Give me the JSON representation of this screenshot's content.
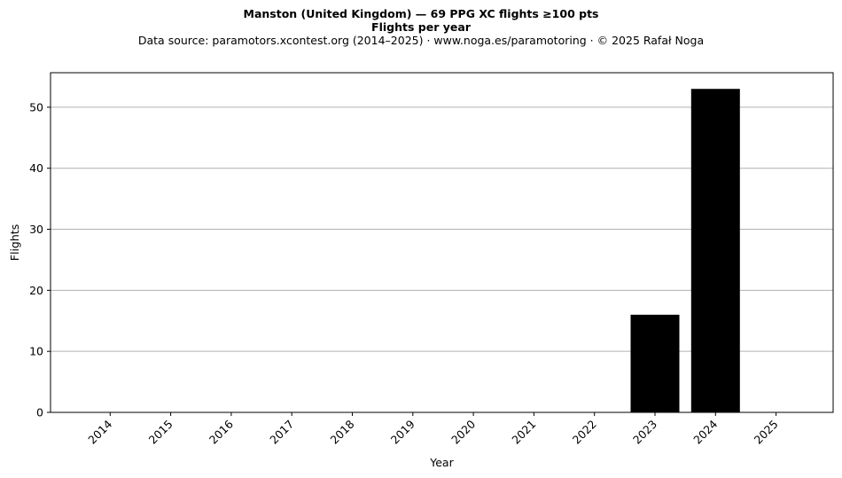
{
  "chart_data": {
    "type": "bar",
    "title": "Manston (United Kingdom)  —  69 PPG XC flights ≥100 pts",
    "subtitle": "Flights per year",
    "source_note": "Data source: paramotors.xcontest.org (2014–2025)  ·  www.noga.es/paramotoring  ·  © 2025 Rafał Noga",
    "xlabel": "Year",
    "ylabel": "Flights",
    "categories": [
      "2014",
      "2015",
      "2016",
      "2017",
      "2018",
      "2019",
      "2020",
      "2021",
      "2022",
      "2023",
      "2024",
      "2025"
    ],
    "values": [
      0,
      0,
      0,
      0,
      0,
      0,
      0,
      0,
      0,
      16,
      53,
      0
    ],
    "ylim": [
      0,
      55.65
    ],
    "yticks": [
      0,
      10,
      20,
      30,
      40,
      50
    ],
    "grid": "y",
    "bar_color": "#000000",
    "grid_color": "#b0b0b0"
  }
}
